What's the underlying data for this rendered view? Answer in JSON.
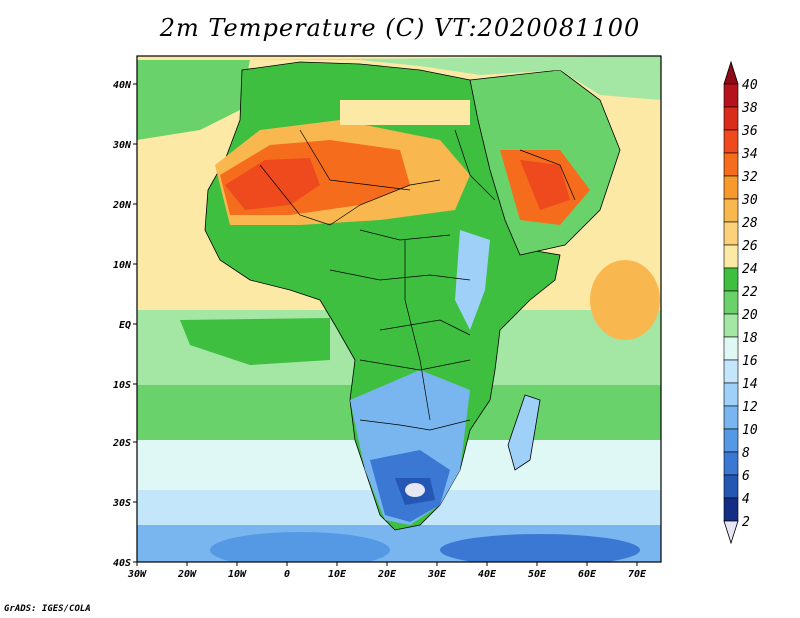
{
  "title": "2m Temperature (C) VT:2020081100",
  "footer": "GrADS: IGES/COLA",
  "axes": {
    "x_ticks": [
      "30W",
      "20W",
      "10W",
      "0",
      "10E",
      "20E",
      "30E",
      "40E",
      "50E",
      "60E",
      "70E"
    ],
    "y_ticks": [
      "40N",
      "30N",
      "20N",
      "10N",
      "EQ",
      "10S",
      "20S",
      "30S",
      "40S"
    ]
  },
  "colorbar": {
    "levels": [
      "40",
      "38",
      "36",
      "34",
      "32",
      "30",
      "28",
      "26",
      "24",
      "22",
      "20",
      "18",
      "16",
      "14",
      "12",
      "10",
      "8",
      "6",
      "4",
      "2"
    ],
    "colors": [
      "#b5121b",
      "#d92c1a",
      "#ef4a1e",
      "#f56d1c",
      "#f89a2b",
      "#f9b84f",
      "#fbd27a",
      "#fde9a6",
      "#3fbf3f",
      "#6ad26a",
      "#a4e6a4",
      "#e0f8f5",
      "#c4e6fb",
      "#9fd0f7",
      "#79b6ef",
      "#5598e4",
      "#3a78d3",
      "#2456b4",
      "#152e85",
      "#e6e6f5"
    ],
    "top_arrow_color": "#8e0a14",
    "bottom_arrow_color": "#e6e6f5"
  },
  "map_colors": {
    "ocean_warm": "#fde9a6",
    "ocean_mid": "#a4e6a4",
    "ocean_cool": "#c4e6fb",
    "ocean_cold": "#79b6ef",
    "land_green": "#3fbf3f",
    "land_light": "#6ad26a",
    "desert": "#f89a2b",
    "desert_hot": "#ef4a1e",
    "desert_core": "#d92c1a",
    "south_blue": "#5598e4",
    "south_deep": "#2456b4",
    "border": "#000000"
  }
}
